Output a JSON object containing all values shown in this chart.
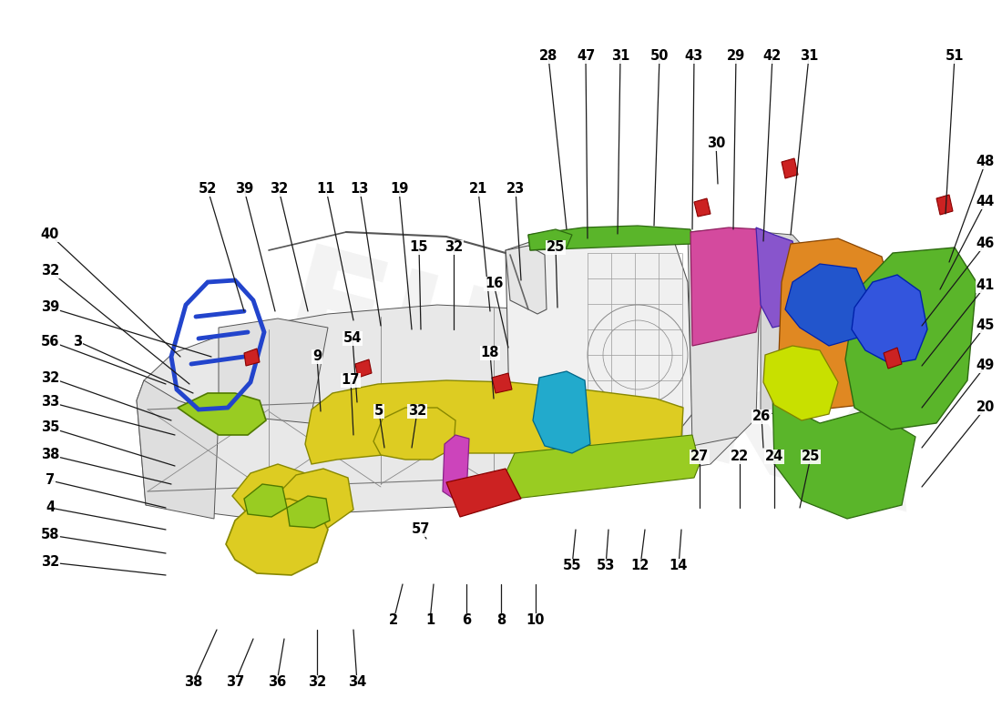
{
  "bg_color": "#ffffff",
  "line_color": "#1a1a1a",
  "line_width": 0.9,
  "label_fontsize": 10.5,
  "label_fontweight": "bold",
  "watermark": "EUREKA",
  "top_labels": [
    [
      "28",
      602,
      62
    ],
    [
      "47",
      643,
      62
    ],
    [
      "31",
      681,
      62
    ],
    [
      "50",
      724,
      62
    ],
    [
      "43",
      762,
      62
    ],
    [
      "29",
      808,
      62
    ],
    [
      "42",
      848,
      62
    ],
    [
      "31",
      888,
      62
    ],
    [
      "51",
      1048,
      62
    ]
  ],
  "right_labels": [
    [
      "48",
      1082,
      178
    ],
    [
      "44",
      1082,
      222
    ],
    [
      "46",
      1082,
      268
    ],
    [
      "41",
      1082,
      314
    ],
    [
      "45",
      1082,
      358
    ],
    [
      "49",
      1082,
      402
    ],
    [
      "20",
      1082,
      448
    ]
  ],
  "left_labels": [
    [
      "40",
      55,
      258
    ],
    [
      "32",
      55,
      298
    ],
    [
      "39",
      55,
      338
    ],
    [
      "56",
      55,
      375
    ],
    [
      "3",
      85,
      375
    ],
    [
      "32",
      55,
      415
    ],
    [
      "33",
      55,
      442
    ],
    [
      "35",
      55,
      470
    ],
    [
      "38",
      55,
      500
    ],
    [
      "7",
      55,
      528
    ],
    [
      "4",
      55,
      558
    ],
    [
      "58",
      55,
      588
    ],
    [
      "32",
      55,
      618
    ]
  ],
  "mid_top_labels": [
    [
      "52",
      228,
      208
    ],
    [
      "39",
      268,
      208
    ],
    [
      "32",
      306,
      208
    ],
    [
      "11",
      358,
      208
    ],
    [
      "13",
      395,
      208
    ],
    [
      "19",
      438,
      208
    ],
    [
      "21",
      525,
      208
    ],
    [
      "23",
      566,
      208
    ]
  ],
  "interior_labels": [
    [
      "30",
      786,
      158
    ],
    [
      "15",
      460,
      272
    ],
    [
      "32",
      498,
      272
    ],
    [
      "25",
      610,
      272
    ],
    [
      "16",
      542,
      312
    ],
    [
      "54",
      387,
      372
    ],
    [
      "9",
      348,
      392
    ],
    [
      "17",
      385,
      418
    ],
    [
      "18",
      538,
      388
    ],
    [
      "5",
      416,
      452
    ],
    [
      "32",
      458,
      452
    ],
    [
      "26",
      836,
      458
    ],
    [
      "27",
      768,
      502
    ],
    [
      "22",
      812,
      502
    ],
    [
      "24",
      850,
      502
    ],
    [
      "25",
      890,
      502
    ],
    [
      "57",
      462,
      582
    ],
    [
      "55",
      628,
      622
    ],
    [
      "53",
      665,
      622
    ],
    [
      "12",
      703,
      622
    ],
    [
      "14",
      745,
      622
    ]
  ],
  "bottom_labels": [
    [
      "2",
      432,
      682
    ],
    [
      "1",
      472,
      682
    ],
    [
      "6",
      512,
      682
    ],
    [
      "8",
      550,
      682
    ],
    [
      "10",
      588,
      682
    ]
  ],
  "very_bottom_labels": [
    [
      "38",
      212,
      750
    ],
    [
      "37",
      258,
      750
    ],
    [
      "36",
      304,
      750
    ],
    [
      "32",
      348,
      750
    ],
    [
      "34",
      392,
      750
    ]
  ],
  "callout_lines": [
    [
      "28",
      602,
      62,
      622,
      252
    ],
    [
      "47",
      643,
      62,
      645,
      262
    ],
    [
      "31",
      681,
      62,
      678,
      257
    ],
    [
      "50",
      724,
      62,
      718,
      248
    ],
    [
      "43",
      762,
      62,
      760,
      252
    ],
    [
      "29",
      808,
      62,
      805,
      252
    ],
    [
      "42",
      848,
      62,
      838,
      265
    ],
    [
      "31",
      888,
      62,
      868,
      258
    ],
    [
      "51",
      1048,
      62,
      1038,
      235
    ],
    [
      "30",
      786,
      158,
      788,
      202
    ],
    [
      "48",
      1082,
      178,
      1042,
      288
    ],
    [
      "44",
      1082,
      222,
      1032,
      318
    ],
    [
      "46",
      1082,
      268,
      1012,
      358
    ],
    [
      "41",
      1082,
      314,
      1012,
      402
    ],
    [
      "45",
      1082,
      358,
      1012,
      448
    ],
    [
      "49",
      1082,
      402,
      1012,
      492
    ],
    [
      "20",
      1082,
      448,
      1012,
      535
    ],
    [
      "40",
      55,
      258,
      198,
      392
    ],
    [
      "32",
      55,
      298,
      208,
      422
    ],
    [
      "39",
      55,
      338,
      232,
      392
    ],
    [
      "56",
      55,
      375,
      182,
      422
    ],
    [
      "3",
      85,
      375,
      212,
      432
    ],
    [
      "32",
      55,
      415,
      188,
      462
    ],
    [
      "33",
      55,
      442,
      192,
      478
    ],
    [
      "35",
      55,
      470,
      192,
      512
    ],
    [
      "38",
      55,
      500,
      188,
      532
    ],
    [
      "7",
      55,
      528,
      182,
      558
    ],
    [
      "4",
      55,
      558,
      182,
      582
    ],
    [
      "58",
      55,
      588,
      182,
      608
    ],
    [
      "32",
      55,
      618,
      182,
      632
    ],
    [
      "52",
      228,
      208,
      268,
      342
    ],
    [
      "39",
      268,
      208,
      302,
      342
    ],
    [
      "32",
      306,
      208,
      338,
      342
    ],
    [
      "11",
      358,
      208,
      388,
      352
    ],
    [
      "13",
      395,
      208,
      418,
      358
    ],
    [
      "19",
      438,
      208,
      452,
      362
    ],
    [
      "21",
      525,
      208,
      538,
      342
    ],
    [
      "23",
      566,
      208,
      572,
      308
    ],
    [
      "15",
      460,
      272,
      462,
      362
    ],
    [
      "32",
      498,
      272,
      498,
      362
    ],
    [
      "25",
      610,
      272,
      612,
      338
    ],
    [
      "16",
      542,
      312,
      558,
      382
    ],
    [
      "54",
      387,
      372,
      392,
      442
    ],
    [
      "9",
      348,
      392,
      352,
      452
    ],
    [
      "17",
      385,
      418,
      388,
      478
    ],
    [
      "18",
      538,
      388,
      542,
      438
    ],
    [
      "5",
      416,
      452,
      422,
      492
    ],
    [
      "32",
      458,
      452,
      452,
      492
    ],
    [
      "26",
      836,
      458,
      838,
      492
    ],
    [
      "27",
      768,
      502,
      768,
      558
    ],
    [
      "22",
      812,
      502,
      812,
      558
    ],
    [
      "24",
      850,
      502,
      850,
      558
    ],
    [
      "25",
      890,
      502,
      878,
      558
    ],
    [
      "57",
      462,
      582,
      468,
      592
    ],
    [
      "55",
      628,
      622,
      632,
      582
    ],
    [
      "53",
      665,
      622,
      668,
      582
    ],
    [
      "12",
      703,
      622,
      708,
      582
    ],
    [
      "14",
      745,
      622,
      748,
      582
    ],
    [
      "2",
      432,
      682,
      442,
      642
    ],
    [
      "1",
      472,
      682,
      476,
      642
    ],
    [
      "6",
      512,
      682,
      512,
      642
    ],
    [
      "8",
      550,
      682,
      550,
      642
    ],
    [
      "10",
      588,
      682,
      588,
      642
    ],
    [
      "38",
      212,
      750,
      238,
      692
    ],
    [
      "37",
      258,
      750,
      278,
      702
    ],
    [
      "36",
      304,
      750,
      312,
      702
    ],
    [
      "32",
      348,
      750,
      348,
      692
    ],
    [
      "34",
      392,
      750,
      388,
      692
    ]
  ]
}
